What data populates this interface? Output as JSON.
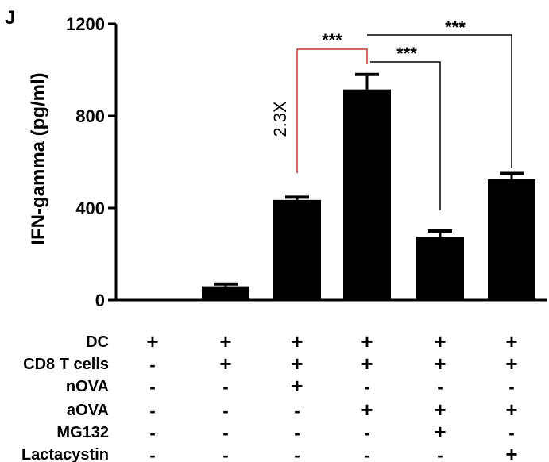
{
  "panel_label": "J",
  "chart_data": {
    "type": "bar",
    "ylabel": "IFN-gamma (pg/ml)",
    "ylim": [
      0,
      1200
    ],
    "yticks": [
      0,
      400,
      800,
      1200
    ],
    "ytick_labels": [
      "0",
      "400",
      "800",
      "1200"
    ],
    "values": [
      0,
      60,
      435,
      915,
      275,
      525
    ],
    "errors": [
      0,
      10,
      12,
      65,
      25,
      25
    ],
    "bar_color": "#000000",
    "conditions": [
      {
        "label": "DC",
        "values": [
          "+",
          "+",
          "+",
          "+",
          "+",
          "+"
        ]
      },
      {
        "label": "CD8 T cells",
        "values": [
          "-",
          "+",
          "+",
          "+",
          "+",
          "+"
        ]
      },
      {
        "label": "nOVA",
        "values": [
          "-",
          "-",
          "+",
          "-",
          "-",
          "-"
        ]
      },
      {
        "label": "aOVA",
        "values": [
          "-",
          "-",
          "-",
          "+",
          "+",
          "+"
        ]
      },
      {
        "label": "MG132",
        "values": [
          "-",
          "-",
          "-",
          "-",
          "+",
          "-"
        ]
      },
      {
        "label": "Lactacystin",
        "values": [
          "-",
          "-",
          "-",
          "-",
          "-",
          "+"
        ]
      }
    ],
    "comparisons": [
      {
        "from": 2,
        "to": 3,
        "label": "***",
        "color": "#c0392b",
        "annotation": "2.3X"
      },
      {
        "from": 3,
        "to": 4,
        "label": "***",
        "color": "#000000"
      },
      {
        "from": 3,
        "to": 5,
        "label": "***",
        "color": "#000000"
      }
    ]
  }
}
